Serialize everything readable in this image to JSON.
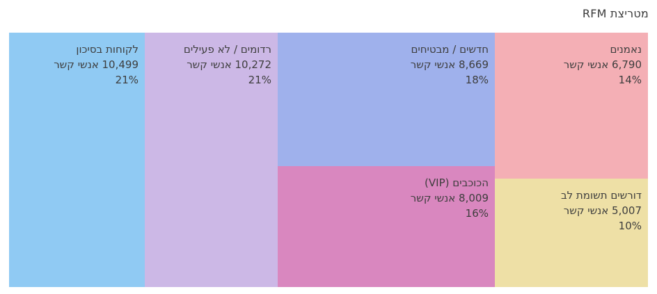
{
  "title": "מטריצת RFM",
  "chart_data": {
    "type": "treemap",
    "title": "מטריצת RFM",
    "unit": "אנשי קשר",
    "legend_position": "none",
    "segments": [
      {
        "name": "לקוחות בסיכון",
        "value": 10499,
        "count_label": "10,499 אנשי קשר",
        "percent": 21,
        "percent_label": "21%",
        "color": "#90CAF3"
      },
      {
        "name": "רדומים / לא פעילים",
        "value": 10272,
        "count_label": "10,272 אנשי קשר",
        "percent": 21,
        "percent_label": "21%",
        "color": "#CCB8E6"
      },
      {
        "name": "חדשים / מבטיחים",
        "value": 8669,
        "count_label": "8,669 אנשי קשר",
        "percent": 18,
        "percent_label": "18%",
        "color": "#9FB1EC"
      },
      {
        "name": "הכוכבים (VIP)",
        "value": 8009,
        "count_label": "8,009 אנשי קשר",
        "percent": 16,
        "percent_label": "16%",
        "color": "#D987BF"
      },
      {
        "name": "נאמנים",
        "value": 6790,
        "count_label": "6,790 אנשי קשר",
        "percent": 14,
        "percent_label": "14%",
        "color": "#F4AFB5"
      },
      {
        "name": "דורשים תשומת לב",
        "value": 5007,
        "count_label": "5,007 אנשי קשר",
        "percent": 10,
        "percent_label": "10%",
        "color": "#EEE0A6"
      }
    ],
    "text_color": "#3d3d3d"
  }
}
